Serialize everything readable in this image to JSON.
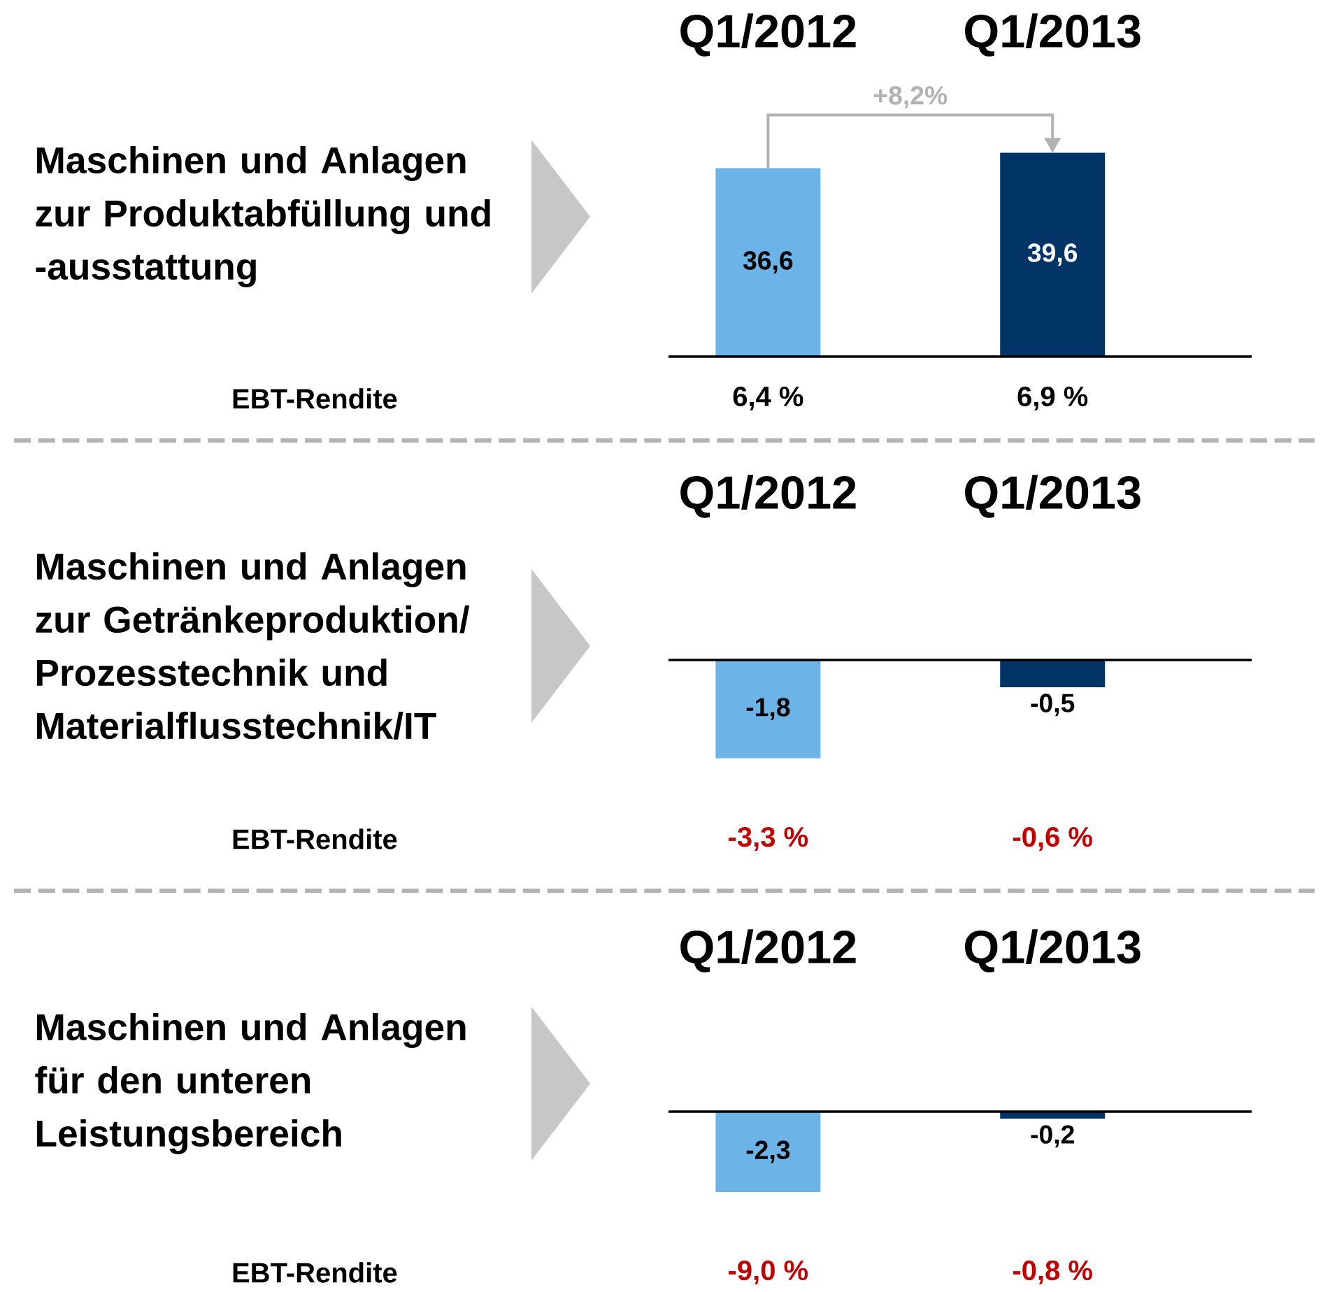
{
  "chart_data": [
    {
      "type": "bar",
      "title": "Maschinen und Anlagen zur Produktabfüllung und -ausstattung",
      "categories": [
        "Q1/2012",
        "Q1/2013"
      ],
      "values": [
        36.6,
        39.6
      ],
      "colors": [
        "#6cb4e8",
        "#003366"
      ],
      "value_labels": [
        "36,6",
        "39,6"
      ],
      "annotations": [
        "+8,2%",
        "EBT-Rendite",
        "6,4 %",
        "6,9 %"
      ]
    },
    {
      "type": "bar",
      "title": "Maschinen und Anlagen zur Getränkeproduktion/ Prozesstechnik und Materialflusstechnik/IT",
      "categories": [
        "Q1/2012",
        "Q1/2013"
      ],
      "values": [
        -1.8,
        -0.5
      ],
      "colors": [
        "#6cb4e8",
        "#003366"
      ],
      "value_labels": [
        "-1,8",
        "-0,5"
      ],
      "annotations": [
        "EBT-Rendite",
        "-3,3 %",
        "-0,6 %"
      ]
    },
    {
      "type": "bar",
      "title": "Maschinen und Anlagen für den unteren Leistungsbereich",
      "categories": [
        "Q1/2012",
        "Q1/2013"
      ],
      "values": [
        -2.3,
        -0.2
      ],
      "colors": [
        "#6cb4e8",
        "#003366"
      ],
      "value_labels": [
        "-2,3",
        "-0,2"
      ],
      "annotations": [
        "EBT-Rendite",
        "-9,0 %",
        "-0,8 %"
      ]
    }
  ]
}
